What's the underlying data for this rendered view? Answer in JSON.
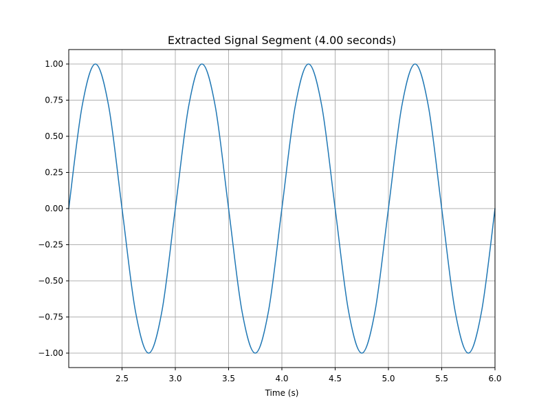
{
  "chart_data": {
    "type": "line",
    "title": "Extracted Signal Segment (4.00 seconds)",
    "xlabel": "Time (s)",
    "ylabel": "",
    "xlim": [
      2.0,
      6.0
    ],
    "ylim": [
      -1.1,
      1.1
    ],
    "grid": true,
    "legend": "none",
    "x_ticks": [
      2.5,
      3.0,
      3.5,
      4.0,
      4.5,
      5.0,
      5.5,
      6.0
    ],
    "x_tick_labels": [
      "2.5",
      "3.0",
      "3.5",
      "4.0",
      "4.5",
      "5.0",
      "5.5",
      "6.0"
    ],
    "y_ticks": [
      1.0,
      0.75,
      0.5,
      0.25,
      0.0,
      -0.25,
      -0.5,
      -0.75,
      -1.0
    ],
    "y_tick_labels": [
      "1.00",
      "0.75",
      "0.50",
      "0.25",
      "0.00",
      "−0.25",
      "−0.50",
      "−0.75",
      "−1.00"
    ],
    "series": [
      {
        "color": "#1f77b4",
        "x": [
          2.0,
          2.125,
          2.25,
          2.375,
          2.5,
          2.625,
          2.75,
          2.875,
          3.0,
          3.125,
          3.25,
          3.375,
          3.5,
          3.625,
          3.75,
          3.875,
          4.0,
          4.125,
          4.25,
          4.375,
          4.5,
          4.625,
          4.75,
          4.875,
          5.0,
          5.125,
          5.25,
          5.375,
          5.5,
          5.625,
          5.75,
          5.875,
          6.0
        ],
        "y": [
          0.0,
          0.707,
          1.0,
          0.707,
          0.0,
          -0.707,
          -1.0,
          -0.707,
          0.0,
          0.707,
          1.0,
          0.707,
          0.0,
          -0.707,
          -1.0,
          -0.707,
          0.0,
          0.707,
          1.0,
          0.707,
          0.0,
          -0.707,
          -1.0,
          -0.707,
          0.0,
          0.707,
          1.0,
          0.707,
          0.0,
          -0.707,
          -1.0,
          -0.707,
          0.0
        ]
      }
    ],
    "colors": {
      "line": "#1f77b4",
      "grid": "#b0b0b0",
      "axes": "#000000",
      "background": "#ffffff"
    }
  }
}
